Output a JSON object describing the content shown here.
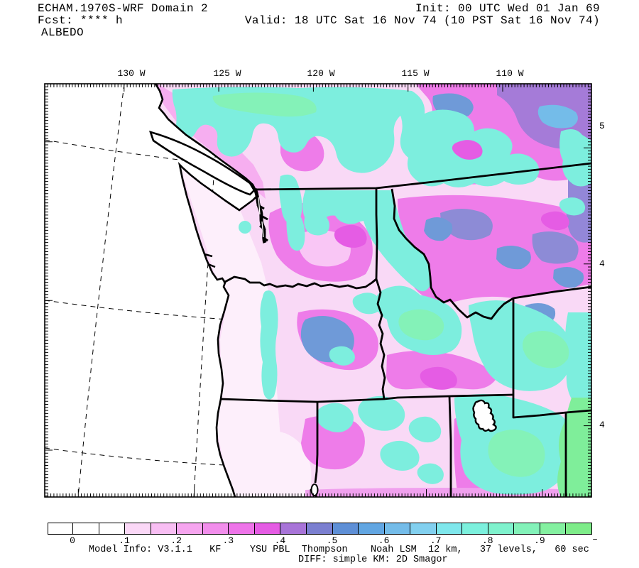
{
  "header": {
    "model_title": "ECHAM.1970S-WRF Domain 2",
    "fcst_line": "Fcst: **** h",
    "field_name": "ALBEDO",
    "init_line": "Init: 00 UTC Wed 01 Jan 69",
    "valid_line": "Valid: 18 UTC Sat 16 Nov 74 (10 PST Sat 16 Nov 74)"
  },
  "map": {
    "top_axis_labels": [
      "130 W",
      "125 W",
      "120 W",
      "115 W",
      "110 W"
    ],
    "right_axis_labels": [
      "5",
      "4",
      "4"
    ]
  },
  "colorbar": {
    "tick_labels": [
      "0",
      ".1",
      ".2",
      ".3",
      ".4",
      ".5",
      ".6",
      ".7",
      ".8",
      ".9"
    ],
    "end_label": "–",
    "cell_colors": [
      "#ffffff",
      "#ffffff",
      "#ffffff",
      "#fbd8f7",
      "#f8bef3",
      "#f6a5ef",
      "#f28eec",
      "#ee74e9",
      "#e55ce4",
      "#a874d8",
      "#7b7fd0",
      "#5e8fd6",
      "#62a6e2",
      "#74bce9",
      "#82d0ef",
      "#7fe7ec",
      "#7cf0dd",
      "#7ff2cd",
      "#83f2b9",
      "#84f0a0",
      "#7eec89"
    ]
  },
  "footer": {
    "model_info": "Model Info: V3.1.1   KF     YSU PBL  Thompson    Noah LSM  12 km,   37 levels,   60 sec",
    "diff_line": "DIFF: simple KM: 2D Smagor"
  }
}
